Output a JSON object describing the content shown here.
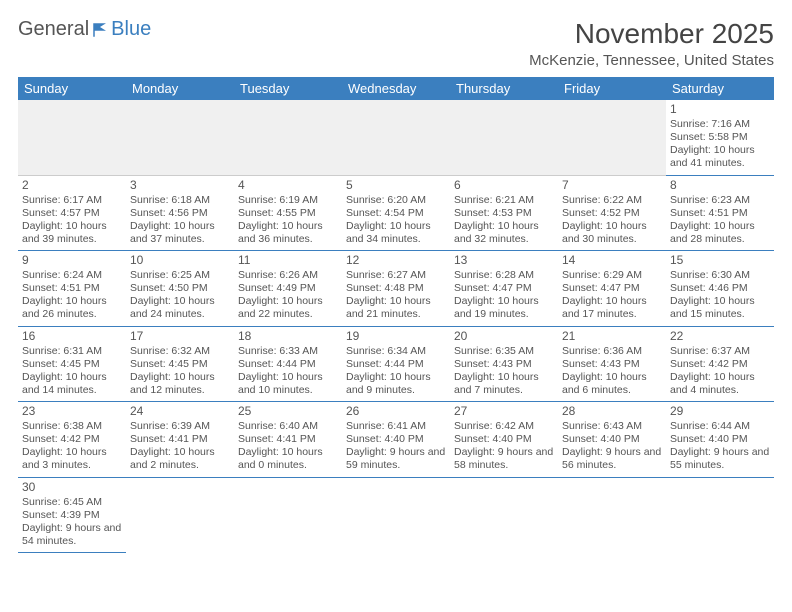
{
  "logo": {
    "text1": "General",
    "text2": "Blue"
  },
  "title": "November 2025",
  "subtitle": "McKenzie, Tennessee, United States",
  "header_bg": "#3b7fbf",
  "header_fg": "#ffffff",
  "border_color": "#3b7fbf",
  "text_color": "#555555",
  "dayheaders": [
    "Sunday",
    "Monday",
    "Tuesday",
    "Wednesday",
    "Thursday",
    "Friday",
    "Saturday"
  ],
  "weeks": [
    [
      null,
      null,
      null,
      null,
      null,
      null,
      {
        "n": "1",
        "sr": "7:16 AM",
        "ss": "5:58 PM",
        "dl": "10 hours and 41 minutes."
      }
    ],
    [
      {
        "n": "2",
        "sr": "6:17 AM",
        "ss": "4:57 PM",
        "dl": "10 hours and 39 minutes."
      },
      {
        "n": "3",
        "sr": "6:18 AM",
        "ss": "4:56 PM",
        "dl": "10 hours and 37 minutes."
      },
      {
        "n": "4",
        "sr": "6:19 AM",
        "ss": "4:55 PM",
        "dl": "10 hours and 36 minutes."
      },
      {
        "n": "5",
        "sr": "6:20 AM",
        "ss": "4:54 PM",
        "dl": "10 hours and 34 minutes."
      },
      {
        "n": "6",
        "sr": "6:21 AM",
        "ss": "4:53 PM",
        "dl": "10 hours and 32 minutes."
      },
      {
        "n": "7",
        "sr": "6:22 AM",
        "ss": "4:52 PM",
        "dl": "10 hours and 30 minutes."
      },
      {
        "n": "8",
        "sr": "6:23 AM",
        "ss": "4:51 PM",
        "dl": "10 hours and 28 minutes."
      }
    ],
    [
      {
        "n": "9",
        "sr": "6:24 AM",
        "ss": "4:51 PM",
        "dl": "10 hours and 26 minutes."
      },
      {
        "n": "10",
        "sr": "6:25 AM",
        "ss": "4:50 PM",
        "dl": "10 hours and 24 minutes."
      },
      {
        "n": "11",
        "sr": "6:26 AM",
        "ss": "4:49 PM",
        "dl": "10 hours and 22 minutes."
      },
      {
        "n": "12",
        "sr": "6:27 AM",
        "ss": "4:48 PM",
        "dl": "10 hours and 21 minutes."
      },
      {
        "n": "13",
        "sr": "6:28 AM",
        "ss": "4:47 PM",
        "dl": "10 hours and 19 minutes."
      },
      {
        "n": "14",
        "sr": "6:29 AM",
        "ss": "4:47 PM",
        "dl": "10 hours and 17 minutes."
      },
      {
        "n": "15",
        "sr": "6:30 AM",
        "ss": "4:46 PM",
        "dl": "10 hours and 15 minutes."
      }
    ],
    [
      {
        "n": "16",
        "sr": "6:31 AM",
        "ss": "4:45 PM",
        "dl": "10 hours and 14 minutes."
      },
      {
        "n": "17",
        "sr": "6:32 AM",
        "ss": "4:45 PM",
        "dl": "10 hours and 12 minutes."
      },
      {
        "n": "18",
        "sr": "6:33 AM",
        "ss": "4:44 PM",
        "dl": "10 hours and 10 minutes."
      },
      {
        "n": "19",
        "sr": "6:34 AM",
        "ss": "4:44 PM",
        "dl": "10 hours and 9 minutes."
      },
      {
        "n": "20",
        "sr": "6:35 AM",
        "ss": "4:43 PM",
        "dl": "10 hours and 7 minutes."
      },
      {
        "n": "21",
        "sr": "6:36 AM",
        "ss": "4:43 PM",
        "dl": "10 hours and 6 minutes."
      },
      {
        "n": "22",
        "sr": "6:37 AM",
        "ss": "4:42 PM",
        "dl": "10 hours and 4 minutes."
      }
    ],
    [
      {
        "n": "23",
        "sr": "6:38 AM",
        "ss": "4:42 PM",
        "dl": "10 hours and 3 minutes."
      },
      {
        "n": "24",
        "sr": "6:39 AM",
        "ss": "4:41 PM",
        "dl": "10 hours and 2 minutes."
      },
      {
        "n": "25",
        "sr": "6:40 AM",
        "ss": "4:41 PM",
        "dl": "10 hours and 0 minutes."
      },
      {
        "n": "26",
        "sr": "6:41 AM",
        "ss": "4:40 PM",
        "dl": "9 hours and 59 minutes."
      },
      {
        "n": "27",
        "sr": "6:42 AM",
        "ss": "4:40 PM",
        "dl": "9 hours and 58 minutes."
      },
      {
        "n": "28",
        "sr": "6:43 AM",
        "ss": "4:40 PM",
        "dl": "9 hours and 56 minutes."
      },
      {
        "n": "29",
        "sr": "6:44 AM",
        "ss": "4:40 PM",
        "dl": "9 hours and 55 minutes."
      }
    ],
    [
      {
        "n": "30",
        "sr": "6:45 AM",
        "ss": "4:39 PM",
        "dl": "9 hours and 54 minutes."
      },
      null,
      null,
      null,
      null,
      null,
      null
    ]
  ],
  "labels": {
    "sunrise": "Sunrise:",
    "sunset": "Sunset:",
    "daylight": "Daylight:"
  }
}
